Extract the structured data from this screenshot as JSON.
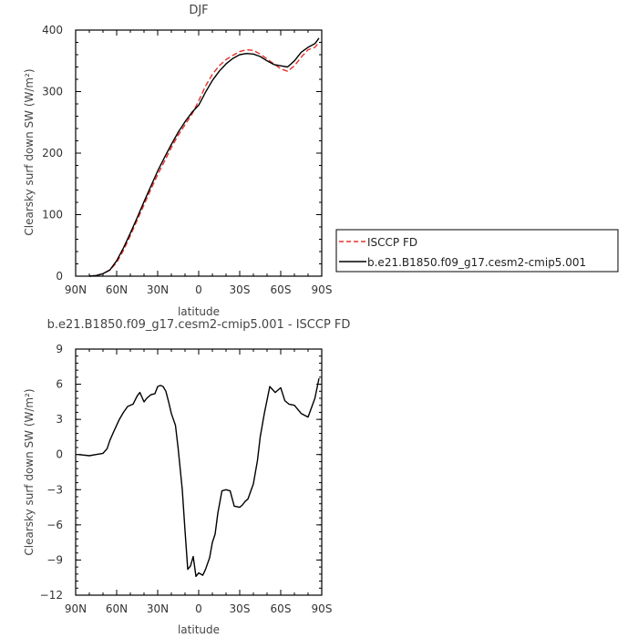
{
  "chart_data": [
    {
      "type": "line",
      "title": "DJF",
      "xlabel": "latitude",
      "ylabel": "Clearsky surf down SW (W/m²)",
      "xlim": [
        -90,
        90
      ],
      "ylim": [
        0,
        400
      ],
      "xticks": [
        -90,
        -60,
        -30,
        0,
        30,
        60,
        90
      ],
      "xtick_labels": [
        "90N",
        "60N",
        "30N",
        "0",
        "30S",
        "60S",
        "90S"
      ],
      "yticks": [
        0,
        100,
        200,
        300,
        400
      ],
      "ytick_labels": [
        "0",
        "100",
        "200",
        "300",
        "400"
      ],
      "legend": {
        "placement": "right"
      },
      "series": [
        {
          "name": "ISCCP FD",
          "color": "#e8302a",
          "dash": true,
          "x": [
            -80,
            -75,
            -70,
            -65,
            -60,
            -55,
            -50,
            -45,
            -40,
            -35,
            -30,
            -25,
            -20,
            -15,
            -10,
            -5,
            0,
            5,
            10,
            15,
            20,
            25,
            30,
            35,
            40,
            45,
            50,
            55,
            60,
            65,
            70,
            75,
            80,
            85,
            88
          ],
          "y": [
            0,
            1,
            4,
            10,
            22,
            42,
            66,
            91,
            116,
            141,
            165,
            187,
            209,
            229,
            246,
            263,
            285,
            309,
            328,
            342,
            352,
            359,
            365,
            368,
            367,
            361,
            353,
            345,
            337,
            333,
            342,
            356,
            368,
            372,
            380
          ]
        },
        {
          "name": "b.e21.B1850.f09_g17.cesm2-cmip5.001",
          "color": "#000000",
          "dash": false,
          "x": [
            -80,
            -75,
            -70,
            -65,
            -60,
            -55,
            -50,
            -45,
            -40,
            -35,
            -30,
            -25,
            -20,
            -15,
            -10,
            -5,
            0,
            5,
            10,
            15,
            20,
            25,
            30,
            35,
            40,
            45,
            50,
            55,
            60,
            65,
            70,
            75,
            80,
            85,
            88
          ],
          "y": [
            0,
            1,
            4,
            10,
            25,
            46,
            70,
            95,
            121,
            146,
            171,
            193,
            214,
            234,
            251,
            266,
            278,
            299,
            318,
            333,
            345,
            354,
            360,
            362,
            361,
            357,
            350,
            344,
            342,
            340,
            350,
            364,
            372,
            378,
            387
          ]
        }
      ]
    },
    {
      "type": "line",
      "title": "b.e21.B1850.f09_g17.cesm2-cmip5.001 - ISCCP FD",
      "xlabel": "latitude",
      "ylabel": "Clearsky surf down SW (W/m²)",
      "xlim": [
        -90,
        90
      ],
      "ylim": [
        -12,
        9
      ],
      "xticks": [
        -90,
        -60,
        -30,
        0,
        30,
        60,
        90
      ],
      "xtick_labels": [
        "90N",
        "60N",
        "30N",
        "0",
        "30S",
        "60S",
        "90S"
      ],
      "yticks": [
        -12,
        -9,
        -6,
        -3,
        0,
        3,
        6,
        9
      ],
      "ytick_labels": [
        "−12",
        "−9",
        "−6",
        "−3",
        "0",
        "3",
        "6",
        "9"
      ],
      "series": [
        {
          "color": "#000000",
          "dash": false,
          "x": [
            -88,
            -80,
            -75,
            -70,
            -67,
            -65,
            -62,
            -58,
            -55,
            -52,
            -48,
            -45,
            -43,
            -40,
            -38,
            -35,
            -32,
            -30,
            -28,
            -26,
            -24,
            -22,
            -20,
            -17,
            -15,
            -12,
            -10,
            -8,
            -6,
            -4,
            -2,
            0,
            3,
            5,
            8,
            10,
            12,
            14,
            17,
            20,
            23,
            26,
            30,
            32,
            34,
            36,
            40,
            43,
            45,
            48,
            52,
            56,
            60,
            63,
            66,
            70,
            75,
            80,
            85,
            88
          ],
          "y": [
            0,
            -0.1,
            0,
            0.1,
            0.5,
            1.2,
            2,
            3,
            3.6,
            4.1,
            4.3,
            5.0,
            5.3,
            4.5,
            4.8,
            5.1,
            5.2,
            5.8,
            5.9,
            5.8,
            5.4,
            4.5,
            3.5,
            2.5,
            0.5,
            -3,
            -6.5,
            -9.8,
            -9.5,
            -8.7,
            -10.4,
            -10.1,
            -10.3,
            -9.8,
            -8.8,
            -7.5,
            -6.8,
            -5.0,
            -3.1,
            -3.0,
            -3.1,
            -4.4,
            -4.5,
            -4.3,
            -4.0,
            -3.8,
            -2.5,
            -0.5,
            1.5,
            3.5,
            5.8,
            5.3,
            5.7,
            4.6,
            4.3,
            4.2,
            3.5,
            3.2,
            4.8,
            6.5
          ]
        }
      ]
    }
  ]
}
